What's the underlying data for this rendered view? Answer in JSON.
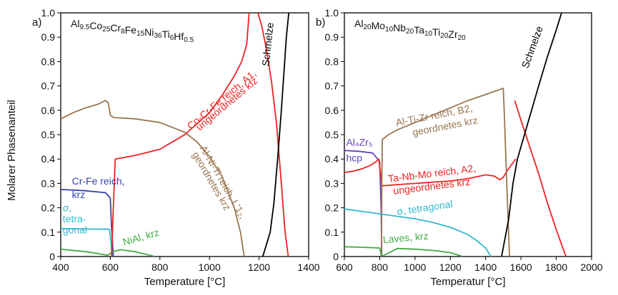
{
  "ylabel": "Molarer Phasenanteil",
  "colors": {
    "blue": "#3344aa",
    "cyan": "#33b8cc",
    "green": "#44aa44",
    "red": "#ee2222",
    "black": "#000000",
    "brown": "#9a7550",
    "purple": "#6644bb"
  },
  "chart_data": [
    {
      "type": "line",
      "panel_label": "a)",
      "title": "Al9.5Co25Cr8Fe15Ni36Ti6Hf0.5",
      "title_parts": [
        {
          "t": "Al",
          "sub": false
        },
        {
          "t": "9.5",
          "sub": true
        },
        {
          "t": "Co",
          "sub": false
        },
        {
          "t": "25",
          "sub": true
        },
        {
          "t": "Cr",
          "sub": false
        },
        {
          "t": "8",
          "sub": true
        },
        {
          "t": "Fe",
          "sub": false
        },
        {
          "t": "15",
          "sub": true
        },
        {
          "t": "Ni",
          "sub": false
        },
        {
          "t": "36",
          "sub": true
        },
        {
          "t": "Ti",
          "sub": false
        },
        {
          "t": "6",
          "sub": true
        },
        {
          "t": "Hf",
          "sub": false
        },
        {
          "t": "0.5",
          "sub": true
        }
      ],
      "xlabel": "Temperature [°C]",
      "ylabel": "Molarer Phasenanteil",
      "xlim": [
        400,
        1400
      ],
      "ylim": [
        0,
        1
      ],
      "xticks": [
        400,
        600,
        800,
        1000,
        1200,
        1400
      ],
      "yticks": [
        0,
        0.1,
        0.2,
        0.3,
        0.4,
        0.5,
        0.6,
        0.7,
        0.8,
        0.9,
        1.0
      ],
      "grid": false,
      "series": [
        {
          "color_key": "blue",
          "points": [
            [
              400,
              0.275
            ],
            [
              500,
              0.27
            ],
            [
              580,
              0.262
            ],
            [
              600,
              0.24
            ],
            [
              605,
              0.12
            ],
            [
              612,
              0
            ]
          ]
        },
        {
          "color_key": "cyan",
          "points": [
            [
              400,
              0.115
            ],
            [
              500,
              0.113
            ],
            [
              596,
              0.112
            ],
            [
              603,
              0.06
            ],
            [
              607,
              0
            ]
          ]
        },
        {
          "color_key": "green",
          "points": [
            [
              400,
              0.03
            ],
            [
              500,
              0.02
            ],
            [
              550,
              0.012
            ],
            [
              590,
              0.005
            ],
            [
              610,
              0.02
            ],
            [
              640,
              0.028
            ],
            [
              700,
              0.02
            ],
            [
              760,
              0.005
            ],
            [
              780,
              0
            ]
          ]
        },
        {
          "color_key": "brown",
          "points": [
            [
              400,
              0.565
            ],
            [
              450,
              0.59
            ],
            [
              500,
              0.61
            ],
            [
              550,
              0.625
            ],
            [
              580,
              0.64
            ],
            [
              592,
              0.63
            ],
            [
              600,
              0.58
            ],
            [
              610,
              0.572
            ],
            [
              620,
              0.57
            ],
            [
              700,
              0.565
            ],
            [
              800,
              0.55
            ],
            [
              900,
              0.51
            ],
            [
              950,
              0.47
            ],
            [
              1000,
              0.41
            ],
            [
              1050,
              0.33
            ],
            [
              1100,
              0.2
            ],
            [
              1125,
              0.1
            ],
            [
              1140,
              0
            ]
          ]
        },
        {
          "color_key": "red",
          "points": [
            [
              605,
              0
            ],
            [
              612,
              0.2
            ],
            [
              620,
              0.4
            ],
            [
              700,
              0.415
            ],
            [
              800,
              0.44
            ],
            [
              900,
              0.5
            ],
            [
              1000,
              0.59
            ],
            [
              1050,
              0.66
            ],
            [
              1100,
              0.74
            ],
            [
              1130,
              0.8
            ],
            [
              1150,
              0.87
            ],
            [
              1160,
              1.0
            ]
          ]
        },
        {
          "color_key": "red",
          "points": [
            [
              1195,
              1.0
            ],
            [
              1210,
              0.95
            ],
            [
              1230,
              0.85
            ],
            [
              1250,
              0.72
            ],
            [
              1270,
              0.55
            ],
            [
              1290,
              0.3
            ],
            [
              1305,
              0.1
            ],
            [
              1318,
              0
            ]
          ]
        },
        {
          "color_key": "black",
          "points": [
            [
              1215,
              0
            ],
            [
              1230,
              0.05
            ],
            [
              1245,
              0.1
            ],
            [
              1260,
              0.22
            ],
            [
              1275,
              0.4
            ],
            [
              1290,
              0.6
            ],
            [
              1300,
              0.75
            ],
            [
              1310,
              0.9
            ],
            [
              1320,
              1.0
            ]
          ]
        }
      ],
      "annotations": [
        {
          "text": "Cr-Fe reich,",
          "color_key": "blue",
          "x": 445,
          "y": 0.295,
          "rotate": 0
        },
        {
          "text": "krz",
          "color_key": "blue",
          "x": 445,
          "y": 0.24,
          "rotate": 0
        },
        {
          "text": "σ,",
          "color_key": "cyan",
          "x": 408,
          "y": 0.185,
          "rotate": 0
        },
        {
          "text": "tetra-",
          "color_key": "cyan",
          "x": 408,
          "y": 0.14,
          "rotate": 0
        },
        {
          "text": "gonal",
          "color_key": "cyan",
          "x": 408,
          "y": 0.095,
          "rotate": 0
        },
        {
          "text": "NiAl, krz",
          "color_key": "green",
          "x": 655,
          "y": 0.045,
          "rotate": -16
        },
        {
          "text": "Co-Cr-Fe reich, A1,",
          "color_key": "red",
          "x": 925,
          "y": 0.52,
          "rotate": -40
        },
        {
          "text": "ungeordnetes kfz",
          "color_key": "red",
          "x": 960,
          "y": 0.515,
          "rotate": -40
        },
        {
          "text": "Al-Ni-Ti reich, L'1₂,",
          "color_key": "brown",
          "x": 960,
          "y": 0.445,
          "rotate": 60
        },
        {
          "text": "geordnetes krz",
          "color_key": "brown",
          "x": 930,
          "y": 0.42,
          "rotate": 60
        },
        {
          "text": "Schmelze",
          "color_key": "black",
          "x": 1240,
          "y": 0.78,
          "rotate": -84
        }
      ]
    },
    {
      "type": "line",
      "panel_label": "b)",
      "title": "Al20Mo10Nb20Ta10Ti20Zr20",
      "title_parts": [
        {
          "t": "Al",
          "sub": false
        },
        {
          "t": "20",
          "sub": true
        },
        {
          "t": "Mo",
          "sub": false
        },
        {
          "t": "10",
          "sub": true
        },
        {
          "t": "Nb",
          "sub": false
        },
        {
          "t": "20",
          "sub": true
        },
        {
          "t": "Ta",
          "sub": false
        },
        {
          "t": "10",
          "sub": true
        },
        {
          "t": "Ti",
          "sub": false
        },
        {
          "t": "20",
          "sub": true
        },
        {
          "t": "Zr",
          "sub": false
        },
        {
          "t": "20",
          "sub": true
        }
      ],
      "xlabel": "Temperatur [°C]",
      "xlim": [
        600,
        2000
      ],
      "ylim": [
        0,
        1
      ],
      "xticks": [
        600,
        800,
        1000,
        1200,
        1400,
        1600,
        1800,
        2000
      ],
      "yticks": [
        0,
        0.1,
        0.2,
        0.3,
        0.4,
        0.5,
        0.6,
        0.7,
        0.8,
        0.9,
        1.0
      ],
      "grid": false,
      "series": [
        {
          "color_key": "purple",
          "points": [
            [
              600,
              0.435
            ],
            [
              680,
              0.432
            ],
            [
              760,
              0.425
            ],
            [
              800,
              0.39
            ],
            [
              808,
              0.2
            ],
            [
              812,
              0
            ]
          ]
        },
        {
          "color_key": "red",
          "points": [
            [
              600,
              0.345
            ],
            [
              650,
              0.35
            ],
            [
              700,
              0.36
            ],
            [
              750,
              0.375
            ],
            [
              780,
              0.39
            ],
            [
              795,
              0.4
            ],
            [
              805,
              0.34
            ],
            [
              812,
              0.29
            ],
            [
              900,
              0.295
            ],
            [
              1000,
              0.3
            ],
            [
              1100,
              0.305
            ],
            [
              1200,
              0.31
            ],
            [
              1300,
              0.32
            ],
            [
              1400,
              0.335
            ],
            [
              1450,
              0.33
            ],
            [
              1480,
              0.315
            ],
            [
              1500,
              0.325
            ],
            [
              1520,
              0.35
            ],
            [
              1550,
              0.38
            ],
            [
              1570,
              0.4
            ]
          ]
        },
        {
          "color_key": "red",
          "points": [
            [
              1565,
              0.64
            ],
            [
              1600,
              0.56
            ],
            [
              1650,
              0.45
            ],
            [
              1700,
              0.34
            ],
            [
              1750,
              0.22
            ],
            [
              1800,
              0.11
            ],
            [
              1850,
              0.01
            ],
            [
              1855,
              0
            ]
          ]
        },
        {
          "color_key": "brown",
          "points": [
            [
              810,
              0
            ],
            [
              812,
              0.3
            ],
            [
              815,
              0.48
            ],
            [
              850,
              0.5
            ],
            [
              900,
              0.52
            ],
            [
              1000,
              0.55
            ],
            [
              1100,
              0.58
            ],
            [
              1200,
              0.61
            ],
            [
              1300,
              0.64
            ],
            [
              1400,
              0.665
            ],
            [
              1480,
              0.685
            ],
            [
              1500,
              0.69
            ],
            [
              1505,
              0.6
            ],
            [
              1515,
              0.4
            ],
            [
              1525,
              0.2
            ],
            [
              1535,
              0
            ]
          ]
        },
        {
          "color_key": "cyan",
          "points": [
            [
              600,
              0.195
            ],
            [
              700,
              0.185
            ],
            [
              800,
              0.175
            ],
            [
              900,
              0.165
            ],
            [
              1000,
              0.155
            ],
            [
              1100,
              0.14
            ],
            [
              1200,
              0.12
            ],
            [
              1300,
              0.09
            ],
            [
              1350,
              0.065
            ],
            [
              1400,
              0.035
            ],
            [
              1430,
              0
            ]
          ]
        },
        {
          "color_key": "green",
          "points": [
            [
              600,
              0.04
            ],
            [
              700,
              0.038
            ],
            [
              800,
              0.035
            ],
            [
              810,
              0
            ],
            [
              900,
              0.033
            ],
            [
              1000,
              0.03
            ],
            [
              1100,
              0.025
            ],
            [
              1200,
              0.016
            ],
            [
              1270,
              0
            ]
          ]
        },
        {
          "color_key": "black",
          "points": [
            [
              1490,
              0
            ],
            [
              1530,
              0.15
            ],
            [
              1555,
              0.3
            ],
            [
              1580,
              0.4
            ],
            [
              1620,
              0.5
            ],
            [
              1660,
              0.6
            ],
            [
              1700,
              0.7
            ],
            [
              1750,
              0.82
            ],
            [
              1800,
              0.93
            ],
            [
              1830,
              1.0
            ]
          ]
        }
      ],
      "annotations": [
        {
          "text": "Al₄Zr₅",
          "color_key": "purple",
          "x": 610,
          "y": 0.455,
          "rotate": 0
        },
        {
          "text": "hcp",
          "color_key": "purple",
          "x": 610,
          "y": 0.39,
          "rotate": 0
        },
        {
          "text": "Al-Ti-Zr reich, B2,",
          "color_key": "brown",
          "x": 895,
          "y": 0.535,
          "rotate": -11
        },
        {
          "text": "geordnetes krz",
          "color_key": "brown",
          "x": 990,
          "y": 0.495,
          "rotate": -11
        },
        {
          "text": "Ta-Nb-Mo reich, A2,",
          "color_key": "red",
          "x": 850,
          "y": 0.305,
          "rotate": -7
        },
        {
          "text": "ungeordnetes krz",
          "color_key": "red",
          "x": 880,
          "y": 0.255,
          "rotate": -7
        },
        {
          "text": "σ, tetragonal",
          "color_key": "cyan",
          "x": 900,
          "y": 0.17,
          "rotate": -8
        },
        {
          "text": "Laves, krz",
          "color_key": "green",
          "x": 820,
          "y": 0.055,
          "rotate": -5
        },
        {
          "text": "Schmelze",
          "color_key": "black",
          "x": 1640,
          "y": 0.77,
          "rotate": -70
        }
      ]
    }
  ]
}
